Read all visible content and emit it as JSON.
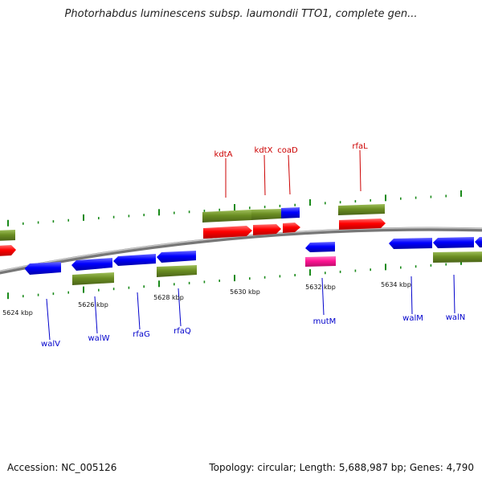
{
  "title": "Photorhabdus luminescens subsp. laumondii TTO1, complete gen...",
  "footer": {
    "accession": "Accession: NC_005126",
    "summary": "Topology: circular; Length: 5,688,987 bp; Genes: 4,790"
  },
  "colors": {
    "red": "#ff0000",
    "blue": "#0000ff",
    "green": "#6b8e23",
    "magenta": "#ff1493",
    "backbone": "#7a7a7a",
    "tick": "#1a8a1a",
    "label_top": "#cc0000",
    "label_bottom": "#0000cc"
  },
  "scale_labels": [
    "5624 kbp",
    "5626 kbp",
    "5628 kbp",
    "5630 kbp",
    "5632 kbp",
    "5634 kbp"
  ],
  "genes_top": [
    "kdtA",
    "kdtX",
    "coaD",
    "rfaL"
  ],
  "genes_bottom": [
    "walV",
    "walW",
    "rfaG",
    "rfaQ",
    "mutM",
    "walM",
    "walN"
  ]
}
